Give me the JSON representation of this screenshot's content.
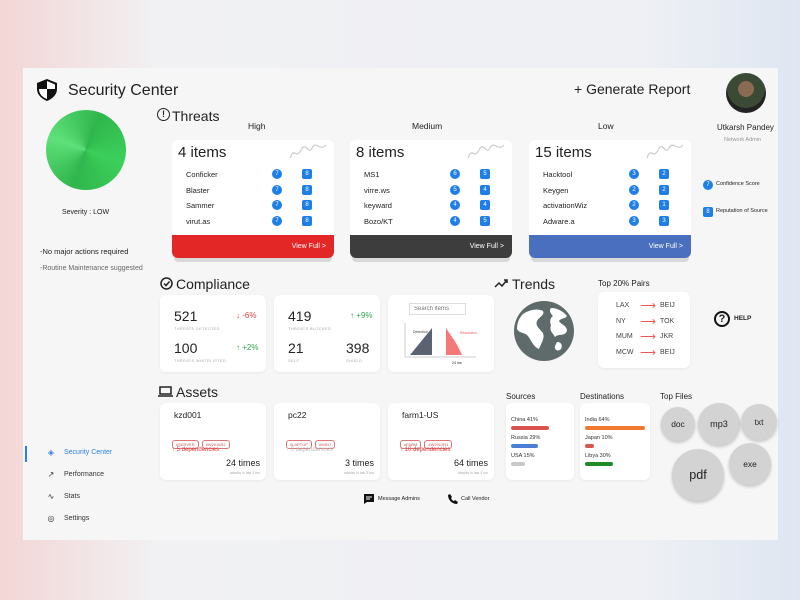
{
  "header": {
    "title": "Security Center",
    "generate_report": "+ Generate Report",
    "user_name": "Utkarsh Pandey",
    "user_role": "Network Admin"
  },
  "severity": {
    "label": "Severity : LOW",
    "note1": "-No major actions required",
    "note2": "-Routine Maintenance suggested",
    "color": "#3ccf5a"
  },
  "threats": {
    "heading": "Threats",
    "groups": [
      {
        "level": "High",
        "count": "4 items",
        "color": "#e32626",
        "view": "View Full >",
        "items": [
          [
            "Conficker",
            "7",
            "8"
          ],
          [
            "Blaster",
            "7",
            "8"
          ],
          [
            "Sammer",
            "7",
            "8"
          ],
          [
            "virut.as",
            "7",
            "8"
          ]
        ]
      },
      {
        "level": "Medium",
        "count": "8 items",
        "color": "#3d3d3d",
        "view": "View Full >",
        "items": [
          [
            "MS1",
            "6",
            "5"
          ],
          [
            "virre.ws",
            "5",
            "4"
          ],
          [
            "keyward",
            "4",
            "4"
          ],
          [
            "Bozo/KT",
            "4",
            "5"
          ]
        ]
      },
      {
        "level": "Low",
        "count": "15 items",
        "color": "#4a6fbf",
        "view": "View Full >",
        "items": [
          [
            "Hacktool",
            "3",
            "2"
          ],
          [
            "Keygen",
            "2",
            "2"
          ],
          [
            "activationWiz",
            "2",
            "1"
          ],
          [
            "Adware.a",
            "3",
            "3"
          ]
        ]
      }
    ],
    "legend": {
      "confidence_badge": "7",
      "confidence": "Confidence Score",
      "reputation_badge": "8",
      "reputation": "Reputation of Source"
    }
  },
  "compliance": {
    "heading": "Compliance",
    "detected": {
      "value": "521",
      "label": "THREATS DETECTED",
      "change": "↓ -6%"
    },
    "whitelisted": {
      "value": "100",
      "label": "THREATS WHITELISTED",
      "change": "↑ +2%"
    },
    "blocked": {
      "value": "419",
      "label": "THREATS BLOCKED",
      "change": "↑ +9%"
    },
    "self": {
      "value": "21",
      "label": "SELF"
    },
    "shield": {
      "value": "398",
      "label": "SHIELD"
    },
    "search_placeholder": "Search items",
    "detection": "Detection",
    "resolution": "Resolution",
    "time": "24 hrs"
  },
  "trends": {
    "heading": "Trends"
  },
  "pairs": {
    "heading": "Top 20% Pairs",
    "items": [
      [
        "LAX",
        "BEIJ"
      ],
      [
        "NY",
        "TOK"
      ],
      [
        "MUM",
        "JKR"
      ],
      [
        "MCW",
        "BEIJ"
      ]
    ]
  },
  "help": "HELP",
  "assets": {
    "heading": "Assets",
    "items": [
      {
        "name": "kzd001",
        "tags": [
          "#SERVER",
          "#W2016R2"
        ],
        "deps": "↑ 5 dependencies",
        "active": true,
        "times": "24 times",
        "sub": "attacks in last 3 hrs"
      },
      {
        "name": "pc22",
        "tags": [
          "#LAPTOP",
          "#WIN7"
        ],
        "deps": "↑ 0 dependencies",
        "active": false,
        "times": "3 times",
        "sub": "attacks in last 3 hrs"
      },
      {
        "name": "farm1-US",
        "tags": [
          "#FARM",
          "#W2012R1"
        ],
        "deps": "↑ 10 dependencies",
        "active": true,
        "times": "64 times",
        "sub": "attacks in last 3 hrs"
      }
    ]
  },
  "sources": {
    "heading": "Sources",
    "items": [
      {
        "label": "China 41%",
        "pct": 41,
        "color": "#d9534f"
      },
      {
        "label": "Russia 29%",
        "pct": 29,
        "color": "#4a7fd6"
      },
      {
        "label": "USA 15%",
        "pct": 15,
        "color": "#c8c8c8"
      }
    ]
  },
  "destinations": {
    "heading": "Destinations",
    "items": [
      {
        "label": "India 64%",
        "pct": 64,
        "color": "#f07830"
      },
      {
        "label": "Japan 10%",
        "pct": 10,
        "color": "#d9534f"
      },
      {
        "label": "Libya 30%",
        "pct": 30,
        "color": "#1f8a2a"
      }
    ]
  },
  "top_files": {
    "heading": "Top Files",
    "items": [
      "doc",
      "mp3",
      "txt",
      "pdf",
      "exe"
    ]
  },
  "actions": {
    "message": "Message Admins",
    "call": "Call Vendor"
  },
  "nav": [
    {
      "label": "Security Center",
      "active": true
    },
    {
      "label": "Performance"
    },
    {
      "label": "Stats"
    },
    {
      "label": "Settings"
    }
  ]
}
